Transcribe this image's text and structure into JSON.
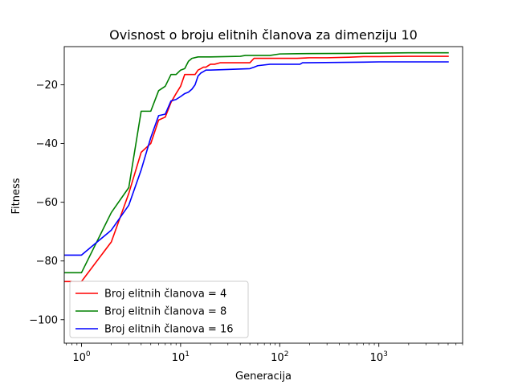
{
  "chart_data": {
    "type": "line",
    "title": "Ovisnost o broju elitnih članova za dimenziju 10",
    "xlabel": "Generacija",
    "ylabel": "Fitness",
    "xscale": "log",
    "xlim": [
      0.67,
      7000
    ],
    "ylim": [
      -108,
      -7
    ],
    "xticks": [
      {
        "value": 1,
        "base": "10",
        "exp": "0"
      },
      {
        "value": 10,
        "base": "10",
        "exp": "1"
      },
      {
        "value": 100,
        "base": "10",
        "exp": "2"
      },
      {
        "value": 1000,
        "base": "10",
        "exp": "3"
      }
    ],
    "yticks": [
      -100,
      -80,
      -60,
      -40,
      -20
    ],
    "grid": false,
    "legend_position": "lower-left",
    "series": [
      {
        "name": "Broj elitnih članova = 4",
        "color": "#ff0000",
        "x": [
          0.67,
          1,
          2,
          3,
          4,
          5,
          6,
          7,
          8,
          9,
          10,
          11,
          14,
          15,
          16,
          17,
          18,
          20,
          22,
          25,
          50,
          55,
          100,
          150,
          200,
          300,
          500,
          700,
          1000,
          2000,
          5000
        ],
        "y": [
          -87,
          -87,
          -73.5,
          -57,
          -43,
          -40,
          -32,
          -31,
          -26,
          -23,
          -20.5,
          -16.5,
          -16.5,
          -15,
          -14.5,
          -14,
          -14,
          -13,
          -13,
          -12.5,
          -12.5,
          -11,
          -11,
          -11,
          -10.8,
          -10.8,
          -10.6,
          -10.4,
          -10.4,
          -10.3,
          -10.3
        ]
      },
      {
        "name": "Broj elitnih članova = 8",
        "color": "#008000",
        "x": [
          0.67,
          1,
          2,
          3,
          4,
          5,
          6,
          7,
          8,
          9,
          10,
          11,
          12,
          13,
          15,
          20,
          40,
          45,
          80,
          100,
          150,
          500,
          1000,
          2000,
          5000
        ],
        "y": [
          -84,
          -84,
          -63.5,
          -55,
          -29,
          -29,
          -22,
          -20.5,
          -16.5,
          -16.5,
          -15,
          -14.5,
          -12,
          -11,
          -10.5,
          -10.5,
          -10.3,
          -10,
          -10,
          -9.5,
          -9.4,
          -9.3,
          -9.2,
          -9.1,
          -9.1
        ]
      },
      {
        "name": "Broj elitnih članova = 16",
        "color": "#0000ff",
        "x": [
          0.67,
          1,
          2,
          3,
          4,
          5,
          6,
          7,
          8,
          9,
          10,
          11,
          12,
          13,
          14,
          15,
          16,
          17,
          18,
          20,
          50,
          55,
          60,
          80,
          160,
          170,
          700,
          1000,
          2000,
          5000
        ],
        "y": [
          -78,
          -78,
          -69.5,
          -61,
          -49,
          -38,
          -30.5,
          -30,
          -25.5,
          -25,
          -24,
          -23,
          -22.5,
          -21.5,
          -20,
          -17,
          -16,
          -15.5,
          -15,
          -15,
          -14.5,
          -14,
          -13.5,
          -13,
          -13,
          -12.5,
          -12.3,
          -12.2,
          -12.2,
          -12.2
        ]
      }
    ]
  }
}
